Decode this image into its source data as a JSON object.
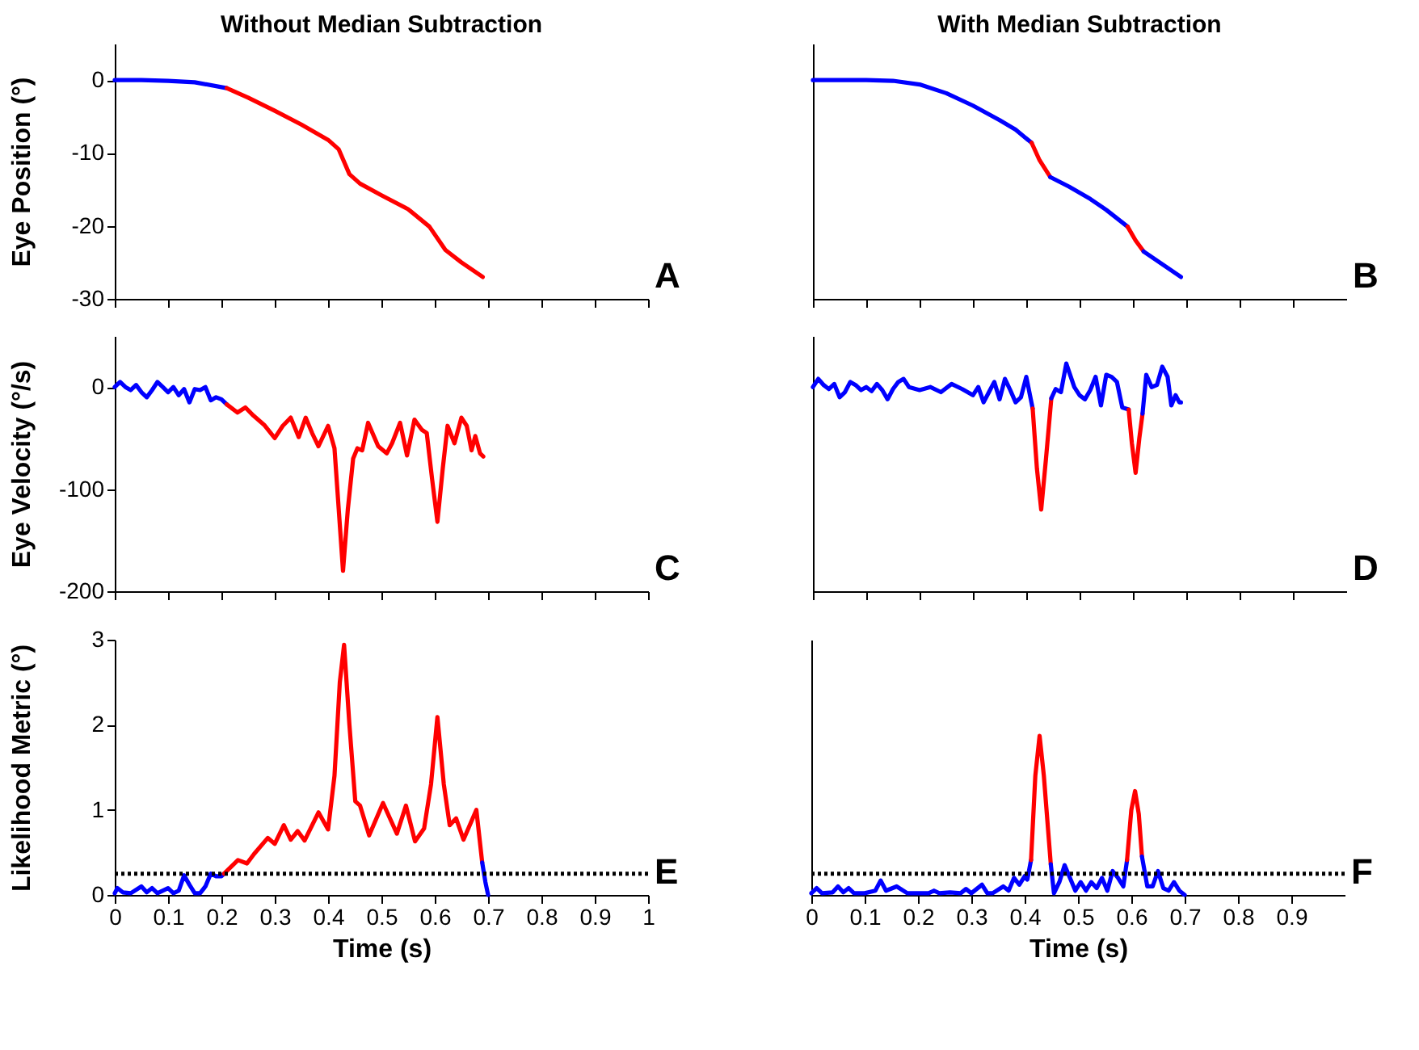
{
  "chart_data": [
    {
      "type": "line",
      "title": "Without Median Subtraction",
      "ylabel": "Eye Position (°)",
      "xlim": [
        0,
        1
      ],
      "xticks": [
        0,
        0.1,
        0.2,
        0.3,
        0.4,
        0.5,
        0.6,
        0.7,
        0.8,
        0.9,
        1
      ],
      "ylim": [
        -30,
        5
      ],
      "yticks": [
        -30,
        -20,
        -10,
        0
      ],
      "tick_labels": "y",
      "annotations": [
        "A"
      ],
      "series": [
        {
          "color": "#0000ff",
          "x": [
            0,
            0.05,
            0.1,
            0.15,
            0.21
          ],
          "values": [
            0,
            0,
            -0.1,
            -0.3,
            -1.1
          ]
        },
        {
          "color": "#ff0000",
          "x": [
            0.21,
            0.25,
            0.3,
            0.35,
            0.4,
            0.42,
            0.44,
            0.46,
            0.5,
            0.55,
            0.59,
            0.62,
            0.65,
            0.69
          ],
          "values": [
            -1.1,
            -2.4,
            -4.2,
            -6.1,
            -8.2,
            -9.5,
            -12.9,
            -14.2,
            -15.8,
            -17.7,
            -20.1,
            -23.3,
            -25,
            -27
          ]
        }
      ]
    },
    {
      "type": "line",
      "title": "With Median Subtraction",
      "xlim": [
        0,
        1
      ],
      "xticks": [
        0,
        0.1,
        0.2,
        0.3,
        0.4,
        0.5,
        0.6,
        0.7,
        0.8,
        0.9
      ],
      "ylim": [
        -30,
        5
      ],
      "yticks": [
        -30,
        -20,
        -10,
        0
      ],
      "tick_labels": false,
      "annotations": [
        "B"
      ],
      "series": [
        {
          "color": "#0000ff",
          "x": [
            0,
            0.05,
            0.1,
            0.15,
            0.2,
            0.25,
            0.3,
            0.35,
            0.38,
            0.41
          ],
          "values": [
            0,
            0,
            0,
            -0.1,
            -0.6,
            -1.8,
            -3.5,
            -5.5,
            -6.8,
            -8.6
          ]
        },
        {
          "color": "#ff0000",
          "x": [
            0.41,
            0.425,
            0.445
          ],
          "values": [
            -8.6,
            -11,
            -13.3
          ]
        },
        {
          "color": "#0000ff",
          "x": [
            0.445,
            0.48,
            0.52,
            0.55,
            0.59
          ],
          "values": [
            -13.3,
            -14.6,
            -16.3,
            -17.8,
            -20.1
          ]
        },
        {
          "color": "#ff0000",
          "x": [
            0.59,
            0.605,
            0.62
          ],
          "values": [
            -20.1,
            -22,
            -23.5
          ]
        },
        {
          "color": "#0000ff",
          "x": [
            0.62,
            0.65,
            0.69
          ],
          "values": [
            -23.5,
            -25,
            -27
          ]
        }
      ]
    },
    {
      "type": "line",
      "ylabel": "Eye Velocity (°/s)",
      "xlim": [
        0,
        1
      ],
      "xticks": [
        0,
        0.1,
        0.2,
        0.3,
        0.4,
        0.5,
        0.6,
        0.7,
        0.8,
        0.9,
        1
      ],
      "ylim": [
        -200,
        50
      ],
      "yticks": [
        -200,
        -100,
        0
      ],
      "tick_labels": "y",
      "annotations": [
        "C"
      ],
      "series": [
        {
          "color": "#0000ff",
          "x": [
            0,
            0.01,
            0.02,
            0.03,
            0.04,
            0.05,
            0.06,
            0.07,
            0.08,
            0.09,
            0.1,
            0.11,
            0.12,
            0.13,
            0.14,
            0.15,
            0.16,
            0.17,
            0.18,
            0.19,
            0.2,
            0.21
          ],
          "values": [
            0,
            5,
            0,
            -3,
            2,
            -5,
            -10,
            -3,
            5,
            0,
            -5,
            0,
            -8,
            -2,
            -15,
            -2,
            -3,
            0,
            -13,
            -10,
            -12,
            -17
          ]
        },
        {
          "color": "#ff0000",
          "x": [
            0.21,
            0.23,
            0.245,
            0.26,
            0.28,
            0.3,
            0.315,
            0.33,
            0.345,
            0.358,
            0.37,
            0.382,
            0.4,
            0.412,
            0.42,
            0.428,
            0.437,
            0.447,
            0.455,
            0.464,
            0.475,
            0.494,
            0.51,
            0.52,
            0.535,
            0.548,
            0.562,
            0.576,
            0.585,
            0.595,
            0.605,
            0.615,
            0.624,
            0.637,
            0.65,
            0.66,
            0.669,
            0.676,
            0.685,
            0.691
          ],
          "values": [
            -17,
            -25,
            -20,
            -28,
            -37,
            -50,
            -38,
            -30,
            -49,
            -30,
            -45,
            -58,
            -38,
            -60,
            -120,
            -180,
            -120,
            -70,
            -60,
            -62,
            -35,
            -58,
            -65,
            -55,
            -35,
            -67,
            -32,
            -42,
            -45,
            -90,
            -132,
            -80,
            -38,
            -55,
            -30,
            -38,
            -62,
            -48,
            -65,
            -68
          ]
        }
      ]
    },
    {
      "type": "line",
      "xlim": [
        0,
        1
      ],
      "xticks": [
        0,
        0.1,
        0.2,
        0.3,
        0.4,
        0.5,
        0.6,
        0.7,
        0.8,
        0.9
      ],
      "ylim": [
        -200,
        50
      ],
      "yticks": [
        -200,
        -100,
        0
      ],
      "tick_labels": false,
      "annotations": [
        "D"
      ],
      "series": [
        {
          "color": "#0000ff",
          "x": [
            0,
            0.01,
            0.02,
            0.03,
            0.04,
            0.05,
            0.06,
            0.07,
            0.08,
            0.09,
            0.1,
            0.11,
            0.12,
            0.13,
            0.14,
            0.15,
            0.16,
            0.17,
            0.18,
            0.2,
            0.22,
            0.24,
            0.26,
            0.28,
            0.3,
            0.31,
            0.32,
            0.33,
            0.34,
            0.35,
            0.36,
            0.37,
            0.38,
            0.39,
            0.4,
            0.412
          ],
          "values": [
            0,
            8,
            2,
            -2,
            3,
            -10,
            -5,
            5,
            2,
            -3,
            0,
            -4,
            3,
            -3,
            -12,
            -2,
            5,
            8,
            0,
            -3,
            0,
            -5,
            3,
            -2,
            -8,
            0,
            -15,
            -5,
            5,
            -12,
            8,
            -3,
            -15,
            -10,
            10,
            -21
          ]
        },
        {
          "color": "#ff0000",
          "x": [
            0.412,
            0.42,
            0.428,
            0.437,
            0.447
          ],
          "values": [
            -21,
            -80,
            -120,
            -70,
            -11
          ]
        },
        {
          "color": "#0000ff",
          "x": [
            0.447,
            0.455,
            0.465,
            0.475,
            0.49,
            0.5,
            0.51,
            0.52,
            0.53,
            0.54,
            0.55,
            0.56,
            0.57,
            0.58,
            0.592
          ],
          "values": [
            -11,
            -2,
            -5,
            23,
            0,
            -8,
            -12,
            -3,
            10,
            -18,
            12,
            10,
            5,
            -20,
            -22
          ]
        },
        {
          "color": "#ff0000",
          "x": [
            0.592,
            0.598,
            0.605,
            0.612,
            0.618
          ],
          "values": [
            -22,
            -55,
            -84,
            -50,
            -26
          ]
        },
        {
          "color": "#0000ff",
          "x": [
            0.618,
            0.625,
            0.635,
            0.645,
            0.655,
            0.665,
            0.672,
            0.68,
            0.687,
            0.69
          ],
          "values": [
            -26,
            12,
            0,
            2,
            20,
            10,
            -18,
            -8,
            -15,
            -15
          ]
        }
      ]
    },
    {
      "type": "line",
      "ylabel": "Likelihood Metric (°)",
      "xlabel": "Time (s)",
      "xlim": [
        0,
        1
      ],
      "xticks": [
        0,
        0.1,
        0.2,
        0.3,
        0.4,
        0.5,
        0.6,
        0.7,
        0.8,
        0.9,
        1
      ],
      "ylim": [
        0,
        3
      ],
      "yticks": [
        0,
        1,
        2,
        3
      ],
      "annotations": [
        "E"
      ],
      "ref_lines": [
        {
          "axis": "y",
          "value": 0.25,
          "color": "#000000",
          "line_style": "dotted"
        }
      ],
      "series": [
        {
          "color": "#0000ff",
          "x": [
            0,
            0.005,
            0.015,
            0.03,
            0.05,
            0.06,
            0.07,
            0.08,
            0.1,
            0.11,
            0.12,
            0.13,
            0.14,
            0.15,
            0.16,
            0.17,
            0.18,
            0.19,
            0.2,
            0.205
          ],
          "values": [
            0.02,
            0.08,
            0.03,
            0.02,
            0.1,
            0.03,
            0.08,
            0.02,
            0.08,
            0.02,
            0.05,
            0.23,
            0.12,
            0.02,
            0.02,
            0.1,
            0.25,
            0.22,
            0.22,
            0.25
          ]
        },
        {
          "color": "#ff0000",
          "x": [
            0.205,
            0.231,
            0.248,
            0.261,
            0.287,
            0.3,
            0.317,
            0.33,
            0.343,
            0.356,
            0.382,
            0.4,
            0.412,
            0.422,
            0.43,
            0.44,
            0.451,
            0.46,
            0.477,
            0.503,
            0.529,
            0.546,
            0.563,
            0.58,
            0.593,
            0.605,
            0.617,
            0.628,
            0.64,
            0.654,
            0.678,
            0.689
          ],
          "values": [
            0.25,
            0.41,
            0.37,
            0.48,
            0.67,
            0.6,
            0.82,
            0.65,
            0.75,
            0.64,
            0.97,
            0.77,
            1.4,
            2.5,
            2.94,
            2.0,
            1.1,
            1.05,
            0.7,
            1.08,
            0.72,
            1.05,
            0.63,
            0.78,
            1.3,
            2.09,
            1.3,
            0.82,
            0.9,
            0.65,
            1.0,
            0.38
          ]
        },
        {
          "color": "#0000ff",
          "x": [
            0.689,
            0.695,
            0.7
          ],
          "values": [
            0.38,
            0.15,
            0
          ]
        }
      ]
    },
    {
      "type": "line",
      "xlabel": "Time (s)",
      "xlim": [
        0,
        1
      ],
      "xticks": [
        0,
        0.1,
        0.2,
        0.3,
        0.4,
        0.5,
        0.6,
        0.7,
        0.8,
        0.9
      ],
      "ylim": [
        0,
        3
      ],
      "yticks": [
        0,
        1,
        2,
        3
      ],
      "tick_labels": "x",
      "annotations": [
        "F"
      ],
      "ref_lines": [
        {
          "axis": "y",
          "value": 0.25,
          "color": "#000000",
          "line_style": "dotted"
        }
      ],
      "series": [
        {
          "color": "#0000ff",
          "x": [
            0,
            0.01,
            0.02,
            0.04,
            0.05,
            0.06,
            0.07,
            0.08,
            0.1,
            0.12,
            0.13,
            0.14,
            0.16,
            0.18,
            0.2,
            0.22,
            0.23,
            0.24,
            0.26,
            0.28,
            0.29,
            0.3,
            0.32,
            0.33,
            0.34,
            0.36,
            0.37,
            0.38,
            0.39,
            0.4,
            0.405,
            0.412
          ],
          "values": [
            0.02,
            0.08,
            0.02,
            0.03,
            0.1,
            0.03,
            0.08,
            0.02,
            0.02,
            0.05,
            0.17,
            0.05,
            0.1,
            0.02,
            0.02,
            0.02,
            0.05,
            0.02,
            0.03,
            0.02,
            0.07,
            0.02,
            0.12,
            0.02,
            0.02,
            0.1,
            0.05,
            0.2,
            0.12,
            0.22,
            0.18,
            0.41
          ]
        },
        {
          "color": "#ff0000",
          "x": [
            0.412,
            0.42,
            0.428,
            0.436,
            0.449
          ],
          "values": [
            0.41,
            1.4,
            1.87,
            1.4,
            0.36
          ]
        },
        {
          "color": "#0000ff",
          "x": [
            0.449,
            0.455,
            0.465,
            0.475,
            0.485,
            0.495,
            0.505,
            0.515,
            0.525,
            0.535,
            0.545,
            0.555,
            0.565,
            0.575,
            0.585,
            0.592
          ],
          "values": [
            0.36,
            0.02,
            0.15,
            0.35,
            0.2,
            0.05,
            0.15,
            0.05,
            0.15,
            0.08,
            0.2,
            0.05,
            0.28,
            0.2,
            0.1,
            0.41
          ]
        },
        {
          "color": "#ff0000",
          "x": [
            0.592,
            0.6,
            0.607,
            0.614,
            0.62
          ],
          "values": [
            0.41,
            1.0,
            1.22,
            0.95,
            0.45
          ]
        },
        {
          "color": "#0000ff",
          "x": [
            0.62,
            0.63,
            0.64,
            0.65,
            0.66,
            0.67,
            0.68,
            0.69,
            0.7
          ],
          "values": [
            0.45,
            0.1,
            0.1,
            0.28,
            0.08,
            0.05,
            0.15,
            0.05,
            0
          ]
        }
      ]
    }
  ]
}
